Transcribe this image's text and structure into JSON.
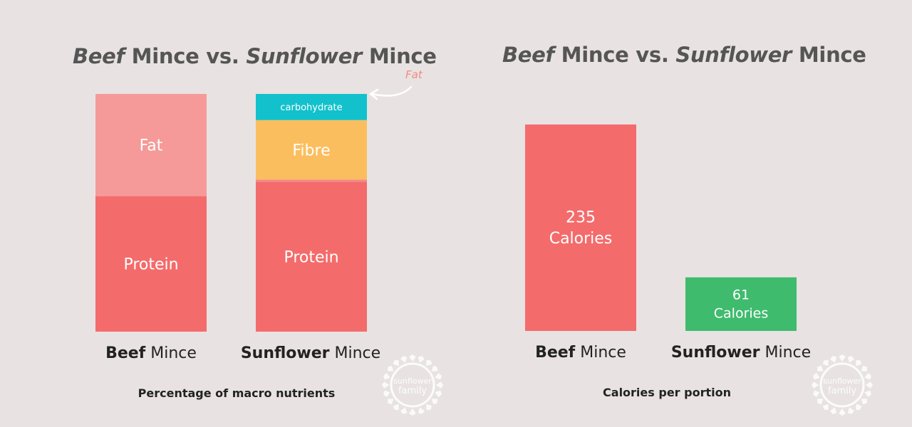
{
  "colors": {
    "background": "#e8e3e2",
    "protein": "#f46b6b",
    "fat_beef": "#f59a98",
    "fat_sunflower": "#f28a86",
    "fibre": "#fbbe5f",
    "carbohydrate": "#12c1cc",
    "calories_beef": "#f46b6b",
    "calories_sunflower": "#3fbb6e",
    "title": "#555555"
  },
  "icons": [
    "arrow-curve-icon",
    "sunflower-family-logo"
  ],
  "chart_data": [
    {
      "type": "bar",
      "stacked": true,
      "normalized": true,
      "title": {
        "part1": "Beef",
        "part2": " Mince vs. ",
        "part3": "Sunflower",
        "part4": " Mince"
      },
      "caption": "Percentage of macro nutrients",
      "categories": [
        {
          "bold": "Beef",
          "rest": " Mince"
        },
        {
          "bold": "Sunflower",
          "rest": " Mince"
        }
      ],
      "series": [
        {
          "name": "Protein",
          "values": [
            57,
            63
          ]
        },
        {
          "name": "Fat",
          "values": [
            43,
            1
          ]
        },
        {
          "name": "Fibre",
          "values": [
            0,
            25
          ]
        },
        {
          "name": "carbohydrate",
          "values": [
            0,
            11
          ]
        }
      ],
      "annotation": "Fat",
      "ylim": [
        0,
        100
      ]
    },
    {
      "type": "bar",
      "title": {
        "part1": "Beef",
        "part2": " Mince vs. ",
        "part3": "Sunflower",
        "part4": " Mince"
      },
      "caption": "Calories per portion",
      "categories": [
        {
          "bold": "Beef",
          "rest": " Mince"
        },
        {
          "bold": "Sunflower",
          "rest": " Mince"
        }
      ],
      "values": [
        235,
        61
      ],
      "value_labels": [
        {
          "number": "235",
          "unit": "Calories"
        },
        {
          "number": "61",
          "unit": "Calories"
        }
      ],
      "ylim": [
        0,
        320
      ]
    }
  ]
}
